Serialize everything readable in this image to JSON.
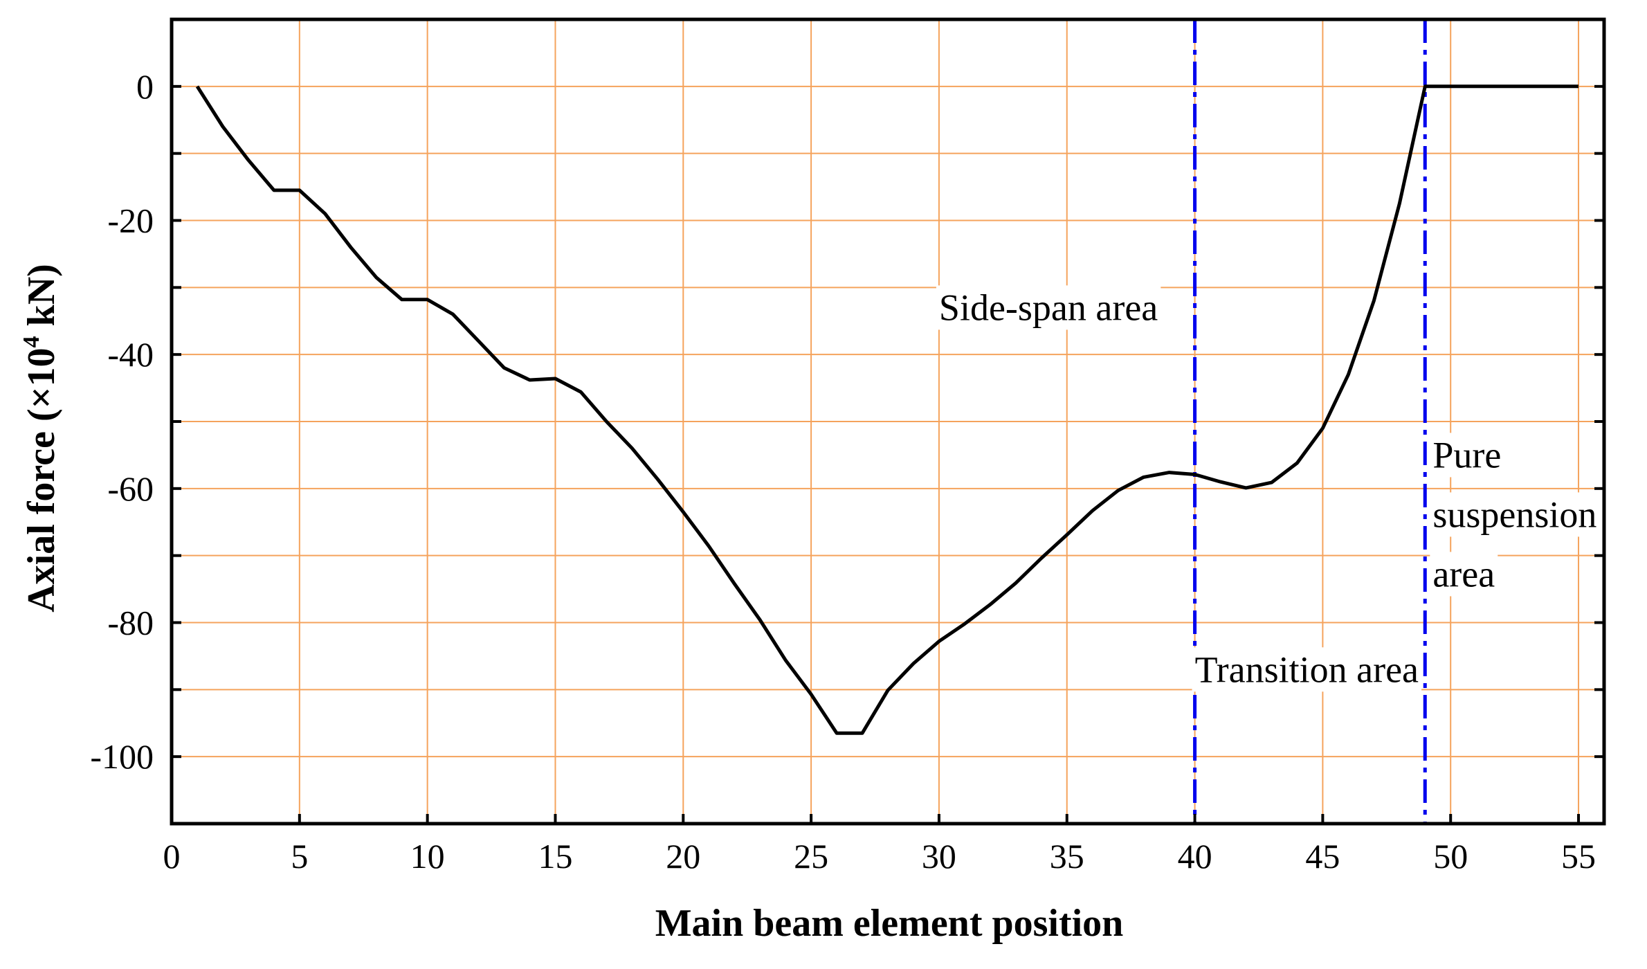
{
  "chart_data": {
    "type": "line",
    "title": "",
    "xlabel": "Main beam element position",
    "ylabel_parts": [
      "Axial force (×10",
      "4",
      " kN)"
    ],
    "xlim": [
      0,
      56
    ],
    "ylim": [
      -110,
      10
    ],
    "xticks": [
      0,
      5,
      10,
      15,
      20,
      25,
      30,
      35,
      40,
      45,
      50,
      55
    ],
    "yticks": [
      0,
      -20,
      -40,
      -60,
      -80,
      -100
    ],
    "x_gridlines": [
      0,
      5,
      10,
      15,
      20,
      25,
      30,
      35,
      40,
      45,
      50,
      55
    ],
    "y_gridlines": [
      10,
      0,
      -10,
      -20,
      -30,
      -40,
      -50,
      -60,
      -70,
      -80,
      -90,
      -100,
      -110
    ],
    "grid": true,
    "grid_color": "#f5a35c",
    "line_color": "#000000",
    "divider_color": "#0000ee",
    "series": [
      {
        "x": [
          1,
          2,
          3,
          4,
          5,
          6,
          7,
          8,
          9,
          10,
          11,
          12,
          13,
          14,
          15,
          16,
          17,
          18,
          19,
          20,
          21,
          22,
          23,
          24,
          25,
          26,
          27,
          28,
          29,
          30,
          31,
          32,
          33,
          34,
          35,
          36,
          37,
          38,
          39,
          40,
          41,
          42,
          43,
          44,
          45,
          46,
          47,
          48,
          49,
          50,
          51,
          52,
          53,
          54,
          55
        ],
        "y": [
          0,
          -6,
          -11,
          -15.5,
          -15.5,
          -19,
          -24,
          -28.5,
          -31.8,
          -31.8,
          -34,
          -38,
          -42,
          -43.8,
          -43.6,
          -45.6,
          -50,
          -54,
          -58.6,
          -63.5,
          -68.6,
          -74.2,
          -79.6,
          -85.6,
          -90.7,
          -96.5,
          -96.5,
          -90.1,
          -86.1,
          -82.8,
          -80.2,
          -77.3,
          -74.1,
          -70.4,
          -66.9,
          -63.3,
          -60.3,
          -58.3,
          -57.6,
          -57.9,
          -59,
          -59.9,
          -59.1,
          -56.2,
          -51,
          -43,
          -32,
          -17.5,
          0,
          0,
          0,
          0,
          0,
          0,
          0
        ]
      }
    ],
    "dividers": [
      40,
      49
    ],
    "annotations": [
      {
        "lines": [
          "Side-span area"
        ],
        "x": 30,
        "y": -33
      },
      {
        "lines": [
          "Transition area"
        ],
        "x": 40,
        "y": -87
      },
      {
        "lines": [
          "Pure",
          "suspension",
          "area"
        ],
        "x": 49.3,
        "y": -55
      }
    ]
  }
}
